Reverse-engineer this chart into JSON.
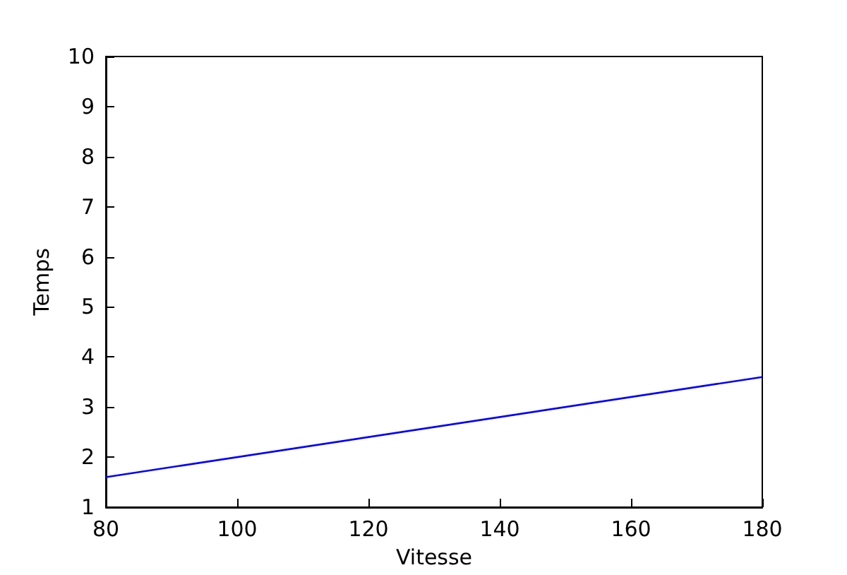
{
  "chart_data": {
    "type": "line",
    "xlabel": "Vitesse",
    "ylabel": "Temps",
    "x": [
      80,
      180
    ],
    "series": [
      {
        "color": "#0000ff",
        "values": [
          1.6,
          3.6
        ]
      }
    ],
    "xlim": [
      80,
      180
    ],
    "xticks": [
      80,
      100,
      120,
      140,
      160,
      180
    ],
    "ylim": [
      1,
      10
    ],
    "yticks": [
      1,
      2,
      3,
      4,
      5,
      6,
      7,
      8,
      9,
      10
    ],
    "marker": "none",
    "line_style": "solid"
  }
}
